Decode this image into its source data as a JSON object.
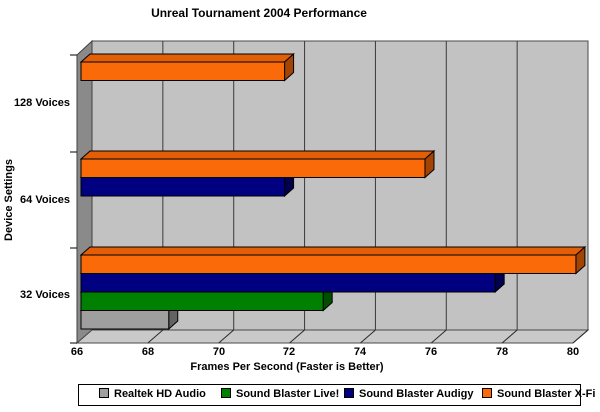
{
  "title": "Unreal Tournament 2004 Performance",
  "chart_data": {
    "type": "bar",
    "orientation": "horizontal",
    "style_3d": true,
    "title": "Unreal Tournament 2004 Performance",
    "xlabel": "Frames Per Second (Faster is Better)",
    "ylabel": "Device Settings",
    "xlim": [
      66,
      80
    ],
    "xticks": [
      66,
      68,
      70,
      72,
      74,
      76,
      78,
      80
    ],
    "grid": true,
    "legend_position": "bottom",
    "categories": [
      "128 Voices",
      "64 Voices",
      "32 Voices"
    ],
    "series": [
      {
        "name": "Realtek HD Audio",
        "color": {
          "front": "#9f9f9f",
          "top": "#8b8b8b",
          "side": "#636363"
        },
        "values": [
          null,
          null,
          68.5
        ]
      },
      {
        "name": "Sound Blaster Live!",
        "color": {
          "front": "#008000",
          "top": "#006e00",
          "side": "#004f00"
        },
        "values": [
          null,
          null,
          72.9
        ]
      },
      {
        "name": "Sound Blaster Audigy",
        "color": {
          "front": "#010080",
          "top": "#01006a",
          "side": "#00004c"
        },
        "values": [
          null,
          71.8,
          77.8
        ]
      },
      {
        "name": "Sound Blaster X-Fi",
        "color": {
          "front": "#fb6a09",
          "top": "#e25e07",
          "side": "#a34405"
        },
        "values": [
          71.8,
          75.8,
          80.1
        ]
      }
    ],
    "wall_color": "#c2c2c2",
    "floor_color": "#c9c9c9",
    "side_wall_color": "#8a8a8a",
    "gridline_color": "#3a3a3a"
  }
}
